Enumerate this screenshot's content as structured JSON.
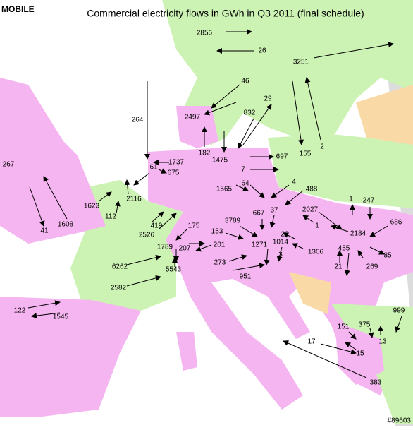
{
  "logo": "MOBILE",
  "title": "Commercial electricity flows in GWh in Q3 2011 (final schedule)",
  "watermark": "#89603",
  "flows": [
    2856,
    26,
    3251,
    46,
    29,
    264,
    2497,
    832,
    155,
    2,
    182,
    1475,
    697,
    1737,
    61,
    675,
    7,
    267,
    1565,
    64,
    4,
    488,
    2116,
    1623,
    112,
    1608,
    41,
    419,
    2526,
    175,
    3789,
    667,
    37,
    2027,
    1,
    1,
    247,
    686,
    2184,
    153,
    22,
    1789,
    207,
    201,
    1271,
    1014,
    3,
    1306,
    455,
    21,
    85,
    269,
    6262,
    5543,
    273,
    951,
    2582,
    122,
    1545,
    999,
    151,
    375,
    13,
    17,
    15,
    383
  ]
}
